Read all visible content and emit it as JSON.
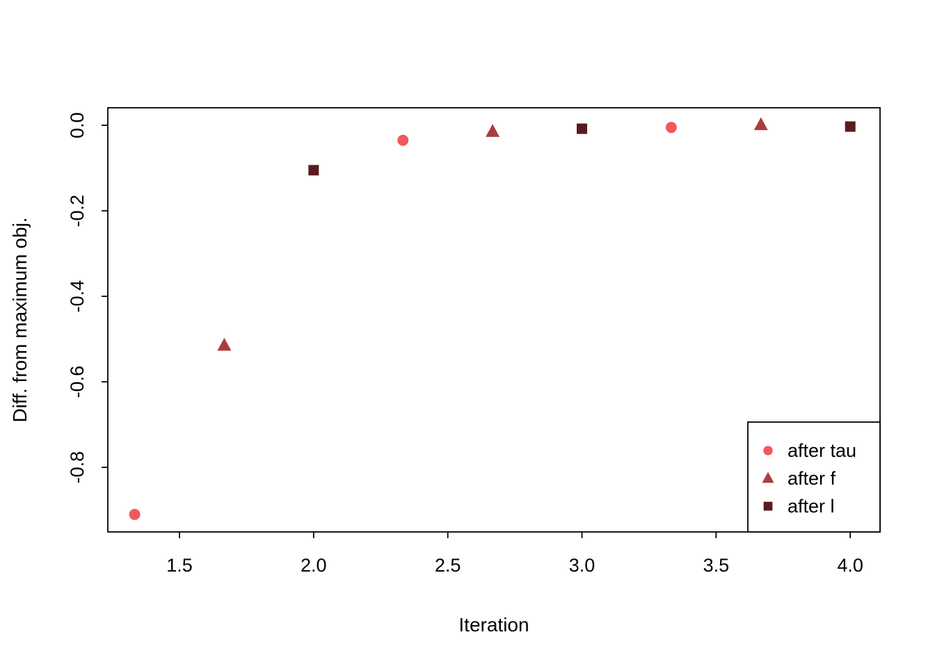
{
  "chart_data": {
    "type": "scatter",
    "title": "",
    "xlabel": "Iteration",
    "ylabel": "Diff. from maximum obj.",
    "xlim": [
      1.233,
      4.111
    ],
    "ylim": [
      -0.951,
      0.041
    ],
    "x_ticks": [
      1.5,
      2.0,
      2.5,
      3.0,
      3.5,
      4.0
    ],
    "y_ticks": [
      0.0,
      -0.2,
      -0.4,
      -0.6,
      -0.8
    ],
    "grid": false,
    "legend_position": "bottom-right",
    "series": [
      {
        "name": "after tau",
        "marker": "circle",
        "color": "#EF5A5E",
        "points": [
          [
            1.333,
            -0.91
          ],
          [
            2.333,
            -0.035
          ],
          [
            3.333,
            -0.005
          ]
        ]
      },
      {
        "name": "after f",
        "marker": "triangle",
        "color": "#AC3C40",
        "points": [
          [
            1.667,
            -0.515
          ],
          [
            2.667,
            -0.015
          ],
          [
            3.667,
            0.001
          ]
        ]
      },
      {
        "name": "after l",
        "marker": "square",
        "color": "#5A1B1F",
        "points": [
          [
            2.0,
            -0.105
          ],
          [
            3.0,
            -0.008
          ],
          [
            4.0,
            -0.003
          ]
        ]
      }
    ],
    "legend": {
      "entries": [
        "after tau",
        "after f",
        "after l"
      ]
    }
  }
}
